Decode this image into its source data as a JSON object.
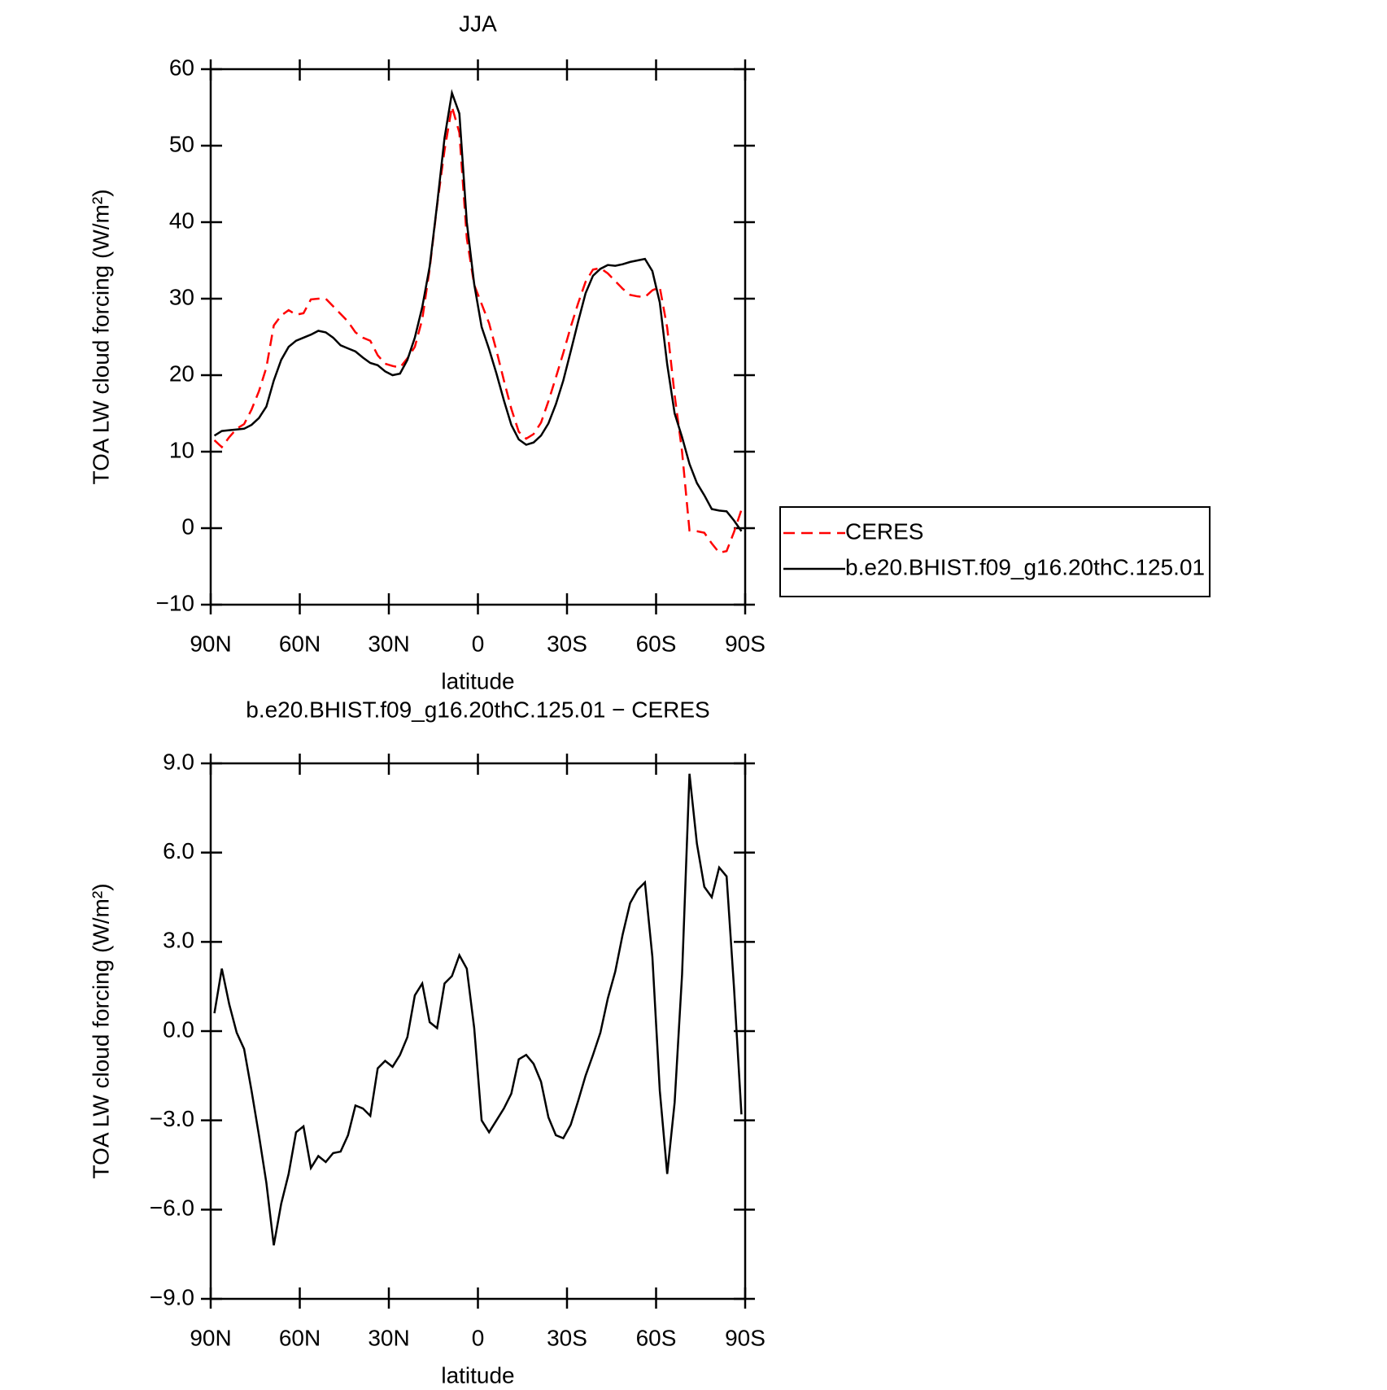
{
  "chart_data": [
    {
      "type": "line",
      "title": "JJA",
      "xlabel": "latitude",
      "ylabel": "TOA LW cloud forcing (W/m²)",
      "x": [
        88.75,
        86.25,
        83.75,
        81.25,
        78.75,
        76.25,
        73.75,
        71.25,
        68.75,
        66.25,
        63.75,
        61.25,
        58.75,
        56.25,
        53.75,
        51.25,
        48.75,
        46.25,
        43.75,
        41.25,
        38.75,
        36.25,
        33.75,
        31.25,
        28.75,
        26.25,
        23.75,
        21.25,
        18.75,
        16.25,
        13.75,
        11.25,
        8.75,
        6.25,
        3.75,
        1.25,
        -1.25,
        -3.75,
        -6.25,
        -8.75,
        -11.25,
        -13.75,
        -16.25,
        -18.75,
        -21.25,
        -23.75,
        -26.25,
        -28.75,
        -31.25,
        -33.75,
        -36.25,
        -38.75,
        -41.25,
        -43.75,
        -46.25,
        -48.75,
        -51.25,
        -53.75,
        -56.25,
        -58.75,
        -61.25,
        -63.75,
        -66.25,
        -68.75,
        -71.25,
        -73.75,
        -76.25,
        -78.75,
        -81.25,
        -83.75,
        -86.25,
        -88.75
      ],
      "series": [
        {
          "name": "CERES",
          "color": "#ff0000",
          "linestyle": "dashed",
          "values": [
            11.5,
            10.6,
            11.9,
            13.0,
            13.6,
            15.5,
            17.9,
            21.0,
            26.5,
            27.8,
            28.5,
            27.9,
            28.1,
            29.9,
            30.0,
            30.0,
            29.0,
            28.0,
            27.0,
            25.6,
            24.9,
            24.5,
            22.6,
            21.5,
            21.2,
            21.0,
            22.2,
            23.7,
            27.3,
            33.9,
            42.2,
            49.4,
            55.1,
            51.7,
            37.9,
            31.8,
            29.3,
            26.8,
            23.2,
            19.3,
            15.6,
            12.6,
            11.7,
            12.3,
            13.8,
            16.6,
            19.7,
            22.9,
            26.3,
            29.4,
            32.2,
            33.8,
            34.0,
            33.3,
            32.3,
            31.3,
            30.5,
            30.3,
            30.2,
            31.1,
            31.5,
            26.2,
            17.4,
            10.0,
            -0.3,
            -0.4,
            -0.6,
            -2.0,
            -3.2,
            -3.0,
            -0.5,
            2.4
          ]
        },
        {
          "name": "b.e20.BHIST.f09_g16.20thC.125.01",
          "color": "#000000",
          "linestyle": "solid",
          "values": [
            12.1,
            12.7,
            12.8,
            12.9,
            13.0,
            13.5,
            14.4,
            15.9,
            19.3,
            22.0,
            23.7,
            24.5,
            24.9,
            25.3,
            25.8,
            25.6,
            24.9,
            23.9,
            23.5,
            23.1,
            22.3,
            21.6,
            21.3,
            20.5,
            20.0,
            20.2,
            22.0,
            24.9,
            28.9,
            34.2,
            42.3,
            51.0,
            56.9,
            54.2,
            40.0,
            31.9,
            26.3,
            23.4,
            20.2,
            16.7,
            13.5,
            11.6,
            10.9,
            11.2,
            12.1,
            13.7,
            16.2,
            19.3,
            23.1,
            27.0,
            30.7,
            33.0,
            33.9,
            34.4,
            34.3,
            34.5,
            34.8,
            35.0,
            35.2,
            33.6,
            29.5,
            21.4,
            15.0,
            11.9,
            8.4,
            5.9,
            4.3,
            2.5,
            2.3,
            2.2,
            1.0,
            -0.4
          ]
        }
      ],
      "xlim": [
        90,
        -90
      ],
      "xticks": [
        {
          "value": 90,
          "label": "90N"
        },
        {
          "value": 60,
          "label": "60N"
        },
        {
          "value": 30,
          "label": "30N"
        },
        0,
        {
          "value": -30,
          "label": "30S"
        },
        {
          "value": -60,
          "label": "60S"
        },
        {
          "value": -90,
          "label": "90S"
        }
      ],
      "ylim": [
        -10,
        60
      ],
      "yticks": [
        {
          "value": -10,
          "label": "−10"
        },
        0,
        10,
        20,
        30,
        40,
        50,
        60
      ],
      "legend": "right"
    },
    {
      "type": "line",
      "title": "b.e20.BHIST.f09_g16.20thC.125.01 − CERES",
      "xlabel": "latitude",
      "ylabel": "TOA LW cloud forcing (W/m²)",
      "x": [
        88.75,
        86.25,
        83.75,
        81.25,
        78.75,
        76.25,
        73.75,
        71.25,
        68.75,
        66.25,
        63.75,
        61.25,
        58.75,
        56.25,
        53.75,
        51.25,
        48.75,
        46.25,
        43.75,
        41.25,
        38.75,
        36.25,
        33.75,
        31.25,
        28.75,
        26.25,
        23.75,
        21.25,
        18.75,
        16.25,
        13.75,
        11.25,
        8.75,
        6.25,
        3.75,
        1.25,
        -1.25,
        -3.75,
        -6.25,
        -8.75,
        -11.25,
        -13.75,
        -16.25,
        -18.75,
        -21.25,
        -23.75,
        -26.25,
        -28.75,
        -31.25,
        -33.75,
        -36.25,
        -38.75,
        -41.25,
        -43.75,
        -46.25,
        -48.75,
        -51.25,
        -53.75,
        -56.25,
        -58.75,
        -61.25,
        -63.75,
        -66.25,
        -68.75,
        -71.25,
        -73.75,
        -76.25,
        -78.75,
        -81.25,
        -83.75,
        -86.25,
        -88.75
      ],
      "series": [
        {
          "color": "#000000",
          "linestyle": "solid",
          "values": [
            0.6,
            2.1,
            0.9,
            -0.05,
            -0.6,
            -2.0,
            -3.5,
            -5.1,
            -7.2,
            -5.8,
            -4.8,
            -3.4,
            -3.2,
            -4.6,
            -4.2,
            -4.4,
            -4.1,
            -4.05,
            -3.5,
            -2.5,
            -2.6,
            -2.85,
            -1.25,
            -1.0,
            -1.2,
            -0.8,
            -0.2,
            1.2,
            1.6,
            0.3,
            0.1,
            1.6,
            1.85,
            2.55,
            2.1,
            0.1,
            -3.0,
            -3.4,
            -3.0,
            -2.6,
            -2.1,
            -0.95,
            -0.8,
            -1.1,
            -1.7,
            -2.9,
            -3.5,
            -3.6,
            -3.15,
            -2.35,
            -1.5,
            -0.8,
            -0.05,
            1.1,
            2.0,
            3.25,
            4.3,
            4.75,
            5.0,
            2.5,
            -2.0,
            -4.8,
            -2.4,
            1.9,
            8.65,
            6.3,
            4.85,
            4.5,
            5.5,
            5.2,
            1.45,
            -2.8
          ]
        }
      ],
      "xlim": [
        90,
        -90
      ],
      "xticks": [
        {
          "value": 90,
          "label": "90N"
        },
        {
          "value": 60,
          "label": "60N"
        },
        {
          "value": 30,
          "label": "30N"
        },
        0,
        {
          "value": -30,
          "label": "30S"
        },
        {
          "value": -60,
          "label": "60S"
        },
        {
          "value": -90,
          "label": "90S"
        }
      ],
      "ylim": [
        -9,
        9
      ],
      "yticks": [
        {
          "value": -9,
          "label": "−9.0"
        },
        {
          "value": -6,
          "label": "−6.0"
        },
        {
          "value": -3,
          "label": "−3.0"
        },
        {
          "value": 0,
          "label": "0.0"
        },
        {
          "value": 3,
          "label": "3.0"
        },
        {
          "value": 6,
          "label": "6.0"
        },
        {
          "value": 9,
          "label": "9.0"
        }
      ]
    }
  ]
}
